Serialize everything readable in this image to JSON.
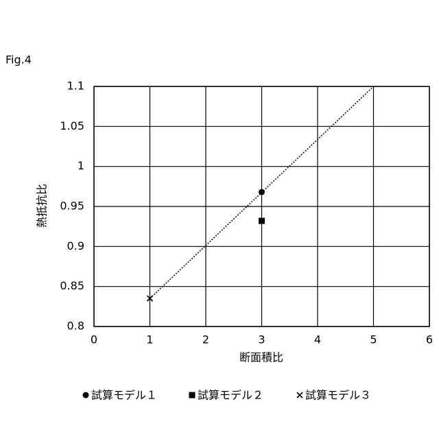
{
  "chart_data": {
    "type": "scatter",
    "figure_label": "Fig.4",
    "x_label": "断面積比",
    "y_label": "熱抵抗比",
    "xlim": [
      0,
      6
    ],
    "xticks": [
      0,
      1,
      2,
      3,
      4,
      5,
      6
    ],
    "ylim": [
      0.8,
      1.1
    ],
    "yticks": [
      0.8,
      0.85,
      0.9,
      0.95,
      1,
      1.05,
      1.1
    ],
    "grid": true,
    "legend": "bottom",
    "series": [
      {
        "name": "試算モデル１",
        "color": "#000000",
        "marker": "circle",
        "x": [
          3
        ],
        "values": [
          0.968
        ]
      },
      {
        "name": "試算モデル２",
        "color": "#000000",
        "marker": "square",
        "x": [
          3
        ],
        "values": [
          0.932
        ]
      },
      {
        "name": "試算モデル３",
        "color": "#000000",
        "marker": "cross",
        "x": [
          1
        ],
        "values": [
          0.835
        ]
      }
    ],
    "trendline": {
      "color": "#000000",
      "x": [
        1,
        5
      ],
      "values": [
        0.835,
        1.1
      ]
    }
  }
}
